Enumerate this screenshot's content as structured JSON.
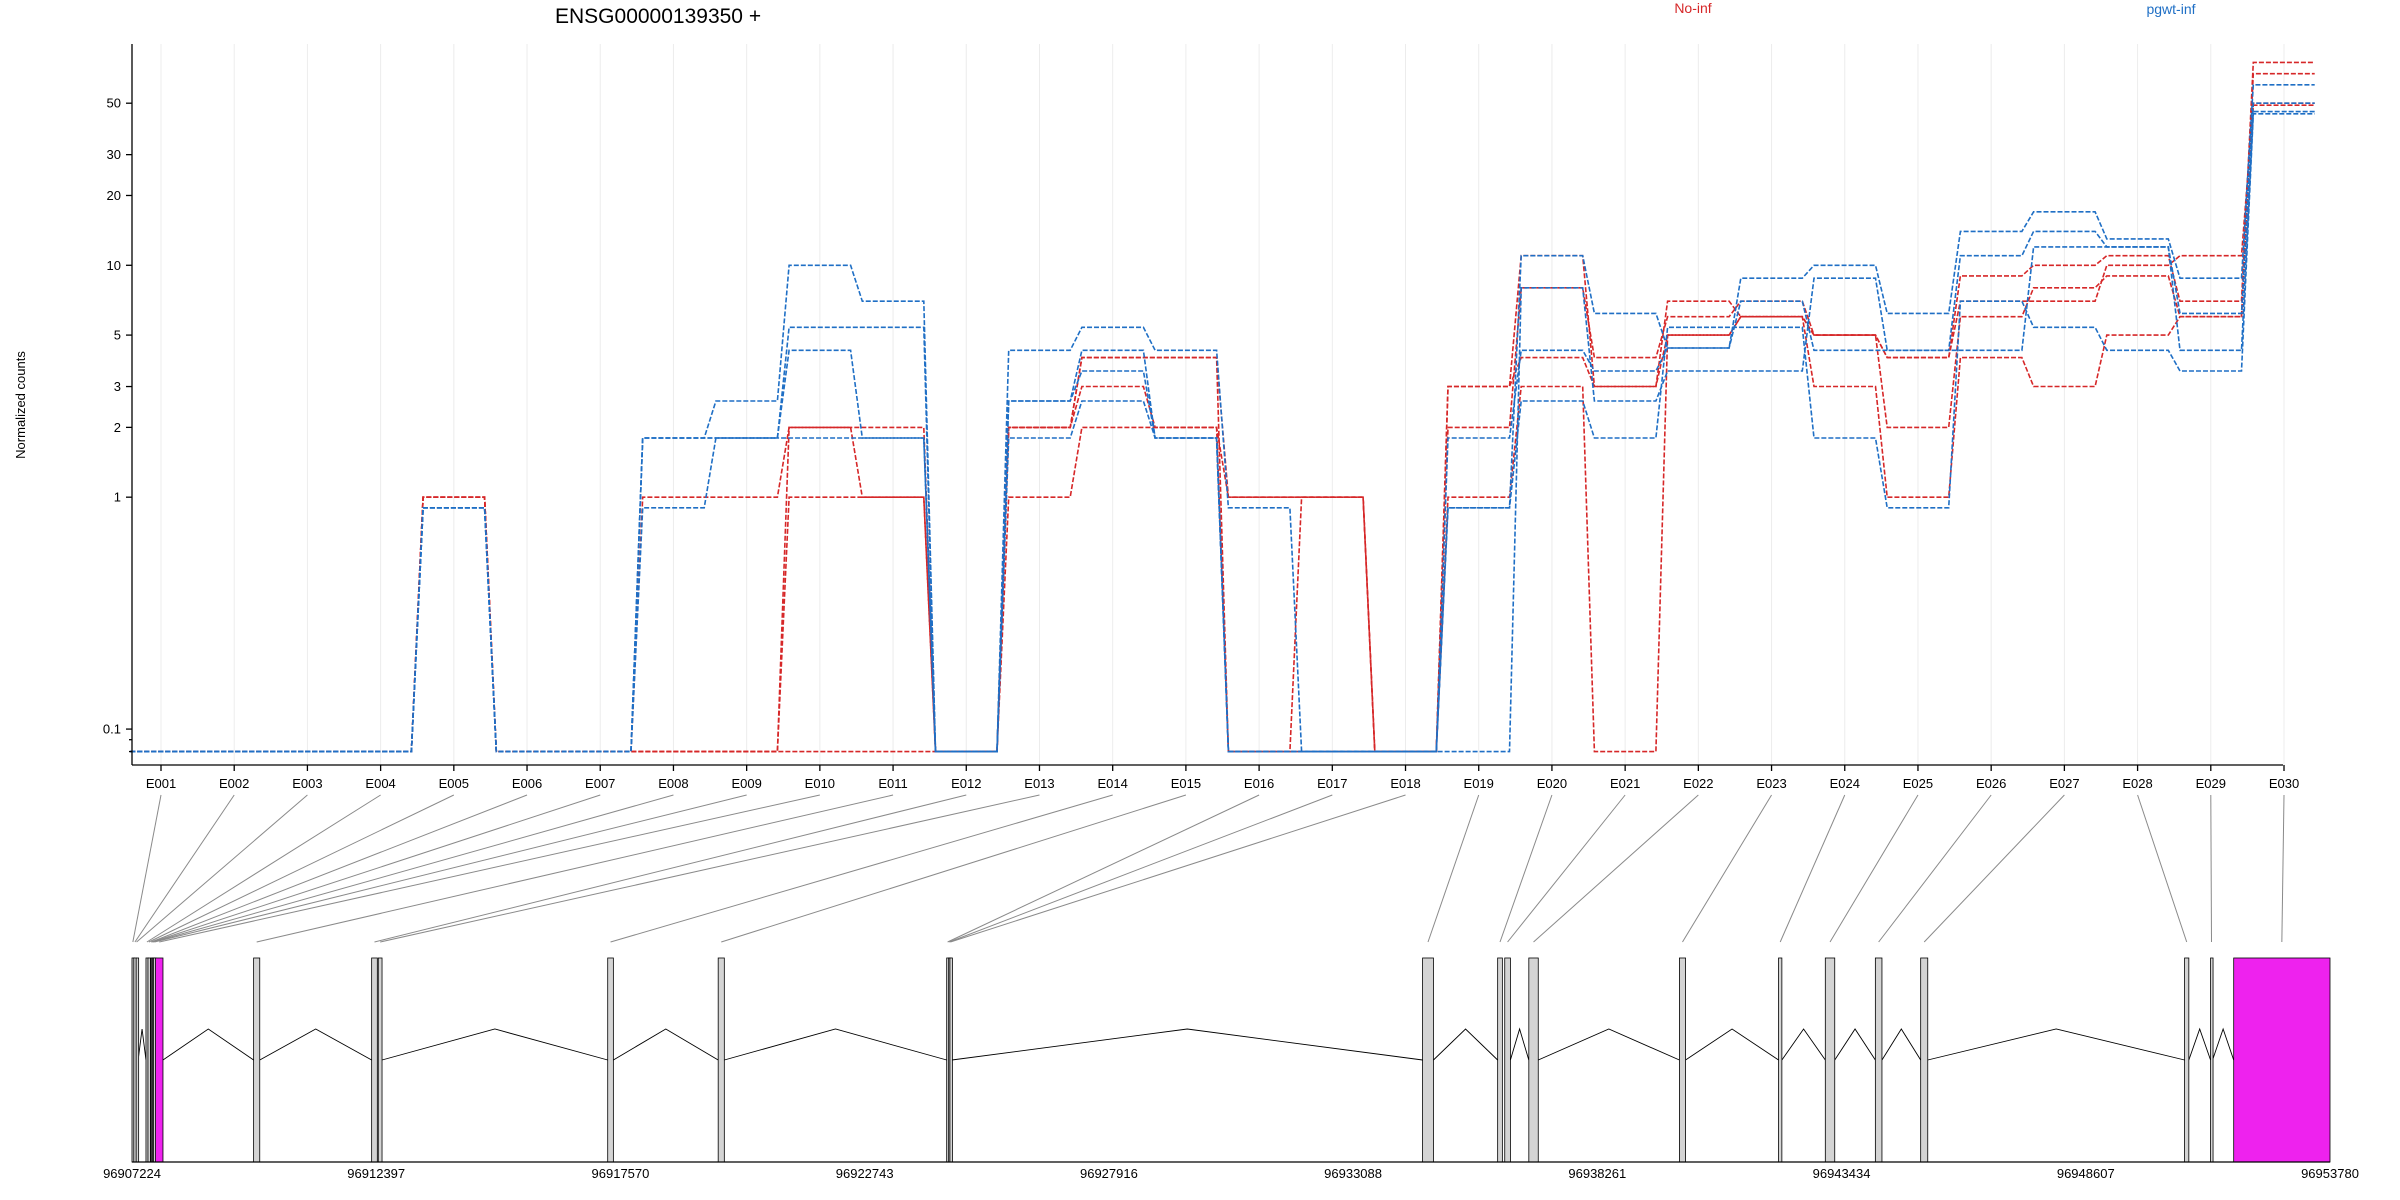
{
  "chart_data": {
    "type": "line",
    "title": "ENSG00000139350 +",
    "ylabel": "Normalized counts",
    "xlabel": "",
    "y_scale": "log",
    "ylim": [
      0.07,
      90
    ],
    "y_ticks": [
      0.1,
      1,
      2,
      3,
      5,
      10,
      20,
      30,
      50
    ],
    "y_tick_labels": [
      "0.1",
      "1",
      "2",
      "3",
      "5",
      "10",
      "20",
      "30",
      "50"
    ],
    "grid": "vertical",
    "legend": {
      "placement": "top",
      "entries": [
        {
          "label": "No-inf",
          "color": "#d62728"
        },
        {
          "label": "pgwt-inf",
          "color": "#1f6fc5"
        }
      ]
    },
    "categories": [
      "E001",
      "E002",
      "E003",
      "E004",
      "E005",
      "E006",
      "E007",
      "E008",
      "E009",
      "E010",
      "E011",
      "E012",
      "E013",
      "E014",
      "E015",
      "E016",
      "E017",
      "E018",
      "E019",
      "E020",
      "E021",
      "E022",
      "E023",
      "E024",
      "E025",
      "E026",
      "E027",
      "E028",
      "E029",
      "E030"
    ],
    "zero_value": 0.08,
    "series": [
      {
        "group": "No-inf",
        "color": "#d62728",
        "values": [
          0,
          0,
          0,
          0,
          1,
          0,
          0,
          1,
          1,
          2,
          2,
          0,
          2,
          4,
          4,
          1,
          1,
          0,
          3,
          11,
          3,
          7,
          6,
          5,
          4,
          9,
          10,
          11,
          7,
          75
        ]
      },
      {
        "group": "No-inf",
        "color": "#d62728",
        "values": [
          0,
          0,
          0,
          0,
          1,
          0,
          0,
          0,
          0,
          1,
          1,
          0,
          1,
          2,
          2,
          1,
          1,
          0,
          2,
          8,
          4,
          6,
          7,
          5,
          2,
          6,
          8,
          9,
          6,
          67
        ]
      },
      {
        "group": "No-inf",
        "color": "#d62728",
        "values": [
          0,
          0,
          0,
          0,
          1,
          0,
          0,
          0,
          0,
          0,
          0,
          0,
          2,
          3,
          2,
          0,
          0,
          0,
          1,
          3,
          0,
          5,
          6,
          3,
          1,
          4,
          3,
          5,
          6,
          50
        ]
      },
      {
        "group": "No-inf",
        "color": "#d62728",
        "values": [
          0,
          0,
          0,
          0,
          1,
          0,
          0,
          0,
          0,
          2,
          1,
          0,
          2,
          4,
          4,
          0,
          1,
          0,
          3,
          4,
          3,
          5,
          6,
          5,
          4,
          7,
          7,
          10,
          11,
          49
        ]
      },
      {
        "group": "pgwt-inf",
        "color": "#1f6fc5",
        "values": [
          0,
          0,
          0,
          0,
          0.9,
          0,
          0,
          1.8,
          2.6,
          10,
          7,
          0,
          4.3,
          5.4,
          4.3,
          0.9,
          0,
          0,
          0.9,
          11,
          6.2,
          4.4,
          8.8,
          10,
          6.2,
          14,
          17,
          13,
          8.8,
          60
        ]
      },
      {
        "group": "pgwt-inf",
        "color": "#1f6fc5",
        "values": [
          0,
          0,
          0,
          0,
          0.9,
          0,
          0,
          1.8,
          1.8,
          5.4,
          5.4,
          0,
          2.6,
          4.3,
          1.8,
          0,
          0,
          0,
          1.8,
          4.3,
          3.5,
          4.4,
          7,
          4.3,
          4.3,
          11,
          14,
          12,
          6.2,
          50
        ]
      },
      {
        "group": "pgwt-inf",
        "color": "#1f6fc5",
        "values": [
          0,
          0,
          0,
          0,
          0.9,
          0,
          0,
          1.8,
          1.8,
          4.3,
          1.8,
          0,
          2.6,
          3.5,
          1.8,
          0,
          0,
          0,
          0.9,
          2.6,
          1.8,
          5.4,
          5.4,
          1.8,
          0.9,
          7,
          5.4,
          4.3,
          3.5,
          45
        ]
      },
      {
        "group": "pgwt-inf",
        "color": "#1f6fc5",
        "values": [
          0,
          0,
          0,
          0,
          0.9,
          0,
          0,
          0.9,
          1.8,
          1.8,
          1.8,
          0,
          1.8,
          2.6,
          1.8,
          0,
          0,
          0,
          0,
          8,
          2.6,
          3.5,
          3.5,
          8.8,
          4.3,
          4.3,
          12,
          12,
          4.3,
          46
        ]
      }
    ],
    "gene_model": {
      "coordinate_ticks": [
        "96907224",
        "96912397",
        "96917570",
        "96922743",
        "96927916",
        "96933088",
        "96938261",
        "96943434",
        "96948607",
        "96953780"
      ],
      "coordinate_range": [
        96907224,
        96953780
      ],
      "highlighted_exons": [
        "E010",
        "E030"
      ],
      "highlight_color": "#ee22ee",
      "exon_color": "#d4d4d4",
      "exons": [
        {
          "id": "E001",
          "start": 96907224,
          "end": 96907260
        },
        {
          "id": "E002",
          "start": 96907262,
          "end": 96907310
        },
        {
          "id": "E003",
          "start": 96907312,
          "end": 96907330
        },
        {
          "id": "E004",
          "start": 96907520,
          "end": 96907560
        },
        {
          "id": "E005",
          "start": 96907562,
          "end": 96907600
        },
        {
          "id": "E006",
          "start": 96907620,
          "end": 96907640
        },
        {
          "id": "E007",
          "start": 96907642,
          "end": 96907660
        },
        {
          "id": "E008",
          "start": 96907662,
          "end": 96907680
        },
        {
          "id": "E009",
          "start": 96907682,
          "end": 96907720
        },
        {
          "id": "E010",
          "start": 96907722,
          "end": 96907880
        },
        {
          "id": "E011",
          "start": 96909800,
          "end": 96909930
        },
        {
          "id": "E012",
          "start": 96912300,
          "end": 96912420
        },
        {
          "id": "E013",
          "start": 96912440,
          "end": 96912520
        },
        {
          "id": "E014",
          "start": 96917300,
          "end": 96917420
        },
        {
          "id": "E015",
          "start": 96919640,
          "end": 96919770
        },
        {
          "id": "E016",
          "start": 96924480,
          "end": 96924520
        },
        {
          "id": "E017",
          "start": 96924522,
          "end": 96924545
        },
        {
          "id": "E018",
          "start": 96924548,
          "end": 96924570
        },
        {
          "id": "E019",
          "start": 96934560,
          "end": 96934790
        },
        {
          "id": "E020",
          "start": 96936150,
          "end": 96936250
        },
        {
          "id": "E021",
          "start": 96936300,
          "end": 96936420
        },
        {
          "id": "E022",
          "start": 96936810,
          "end": 96937010
        },
        {
          "id": "E023",
          "start": 96940000,
          "end": 96940130
        },
        {
          "id": "E024",
          "start": 96942100,
          "end": 96942170
        },
        {
          "id": "E025",
          "start": 96943090,
          "end": 96943290
        },
        {
          "id": "E026",
          "start": 96944150,
          "end": 96944290
        },
        {
          "id": "E027",
          "start": 96945110,
          "end": 96945260
        },
        {
          "id": "E028",
          "start": 96950700,
          "end": 96950790
        },
        {
          "id": "E029",
          "start": 96951250,
          "end": 96951290
        },
        {
          "id": "E030",
          "start": 96951740,
          "end": 96953780
        }
      ]
    }
  }
}
